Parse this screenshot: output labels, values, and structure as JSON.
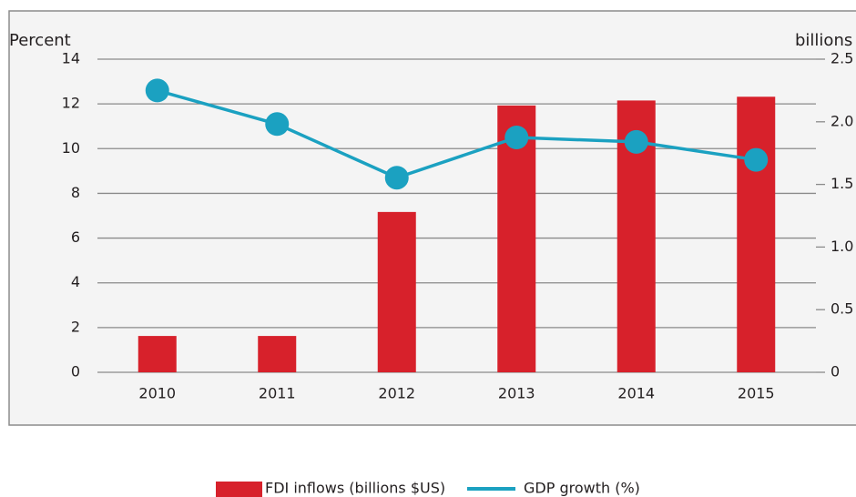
{
  "chart_data": {
    "type": "bar-line",
    "y_label": "Percent",
    "y2_label": "billions",
    "categories": [
      "2010",
      "2011",
      "2012",
      "2013",
      "2014",
      "2015"
    ],
    "series": [
      {
        "name": "FDI inflows (billions $US)",
        "type": "bar",
        "axis": "y2",
        "color": "#d7212b",
        "values": [
          0.29,
          0.29,
          1.28,
          2.13,
          2.17,
          2.2
        ]
      },
      {
        "name": "GDP growth (%)",
        "type": "line",
        "axis": "y",
        "color": "#1ba1c1",
        "values": [
          12.6,
          11.1,
          8.7,
          10.5,
          10.3,
          9.5
        ]
      }
    ],
    "ylim": [
      0,
      14
    ],
    "yticks": [
      0,
      2,
      4,
      6,
      8,
      10,
      12,
      14
    ],
    "y2lim": [
      0,
      2.5
    ],
    "y2ticks": [
      0,
      0.5,
      {
        "value": 1,
        "label": "1.0"
      },
      1.5,
      {
        "value": 2,
        "label": "2.0"
      },
      2.5
    ],
    "grid": true
  }
}
